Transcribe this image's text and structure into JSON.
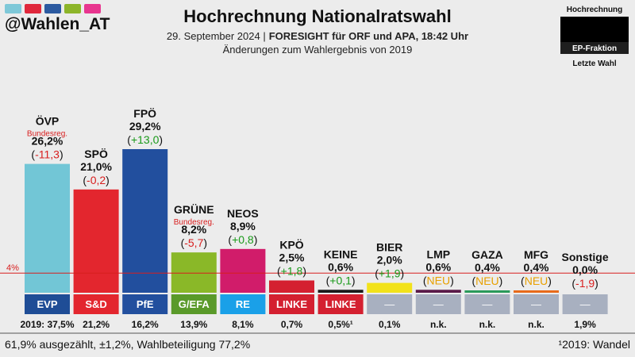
{
  "header": {
    "handle": "@Wahlen_AT",
    "title": "Hochrechnung Nationalratswahl",
    "subtitle_date": "29. September 2024 |",
    "subtitle_source": "FORESIGHT für ORF und APA, 18:42 Uhr",
    "subtitle2": "Änderungen zum Wahlergebnis von 2019",
    "handle_swatches": [
      "#7ec8d8",
      "#e0283c",
      "#2c5aa0",
      "#8db52a",
      "#e8368f"
    ]
  },
  "legend": {
    "top": "Hochrechnung",
    "middle": "EP-Fraktion",
    "bottom": "Letzte Wahl"
  },
  "threshold": {
    "label": "4%",
    "value": 4
  },
  "footer": {
    "left": "61,9% ausgezählt, ±1,2%, Wahlbeteiligung 77,2%",
    "right": "¹2019: Wandel"
  },
  "colors": {
    "positive": "#1a9a1a",
    "negative": "#d81e1e",
    "new": "#e8a000",
    "threshold": "#d81e1e"
  },
  "chart_data": {
    "type": "bar",
    "title": "Hochrechnung Nationalratswahl",
    "ylim": [
      0,
      31
    ],
    "categories": [
      "ÖVP",
      "SPÖ",
      "FPÖ",
      "GRÜNE",
      "NEOS",
      "KPÖ",
      "KEINE",
      "BIER",
      "LMP",
      "GAZA",
      "MFG",
      "Sonstige"
    ],
    "values": [
      26.2,
      21.0,
      29.2,
      8.2,
      8.9,
      2.5,
      0.6,
      2.0,
      0.6,
      0.4,
      0.4,
      0.0
    ],
    "value_labels": [
      "26,2%",
      "21,0%",
      "29,2%",
      "8,2%",
      "8,9%",
      "2,5%",
      "0,6%",
      "2,0%",
      "0,6%",
      "0,4%",
      "0,4%",
      "0,0%"
    ],
    "notes": [
      "Bundesreg.",
      "",
      "",
      "Bundesreg.",
      "",
      "",
      "",
      "",
      "",
      "",
      "",
      ""
    ],
    "changes": [
      "-11,3",
      "-0,2",
      "+13,0",
      "-5,7",
      "+0,8",
      "+1,8",
      "+0,1",
      "+1,9",
      "NEU",
      "NEU",
      "NEU",
      "-1,9"
    ],
    "change_types": [
      "neg",
      "neg",
      "pos",
      "neg",
      "pos",
      "pos",
      "pos",
      "pos",
      "new",
      "new",
      "new",
      "neg"
    ],
    "bar_colors": [
      "#72c6d6",
      "#e3262e",
      "#224f9e",
      "#8ab828",
      "#d11c6a",
      "#d42030",
      "#1a1a1a",
      "#f2e21a",
      "#5a1a48",
      "#2a9a5a",
      "#e86a1a",
      "#9aa4b4"
    ],
    "factions": [
      "EVP",
      "S&D",
      "PfE",
      "G/EFA",
      "RE",
      "LINKE",
      "LINKE",
      "—",
      "—",
      "—",
      "—",
      "—"
    ],
    "faction_colors": [
      "#1f4d96",
      "#e3262e",
      "#224f9e",
      "#5a9a2a",
      "#1aa0e8",
      "#d42030",
      "#d42030",
      "#a8b0c0",
      "#a8b0c0",
      "#a8b0c0",
      "#a8b0c0",
      "#a8b0c0"
    ],
    "last_election": [
      "2019: 37,5%",
      "21,2%",
      "16,2%",
      "13,9%",
      "8,1%",
      "0,7%",
      "0,5%¹",
      "0,1%",
      "n.k.",
      "n.k.",
      "n.k.",
      "1,9%"
    ]
  }
}
